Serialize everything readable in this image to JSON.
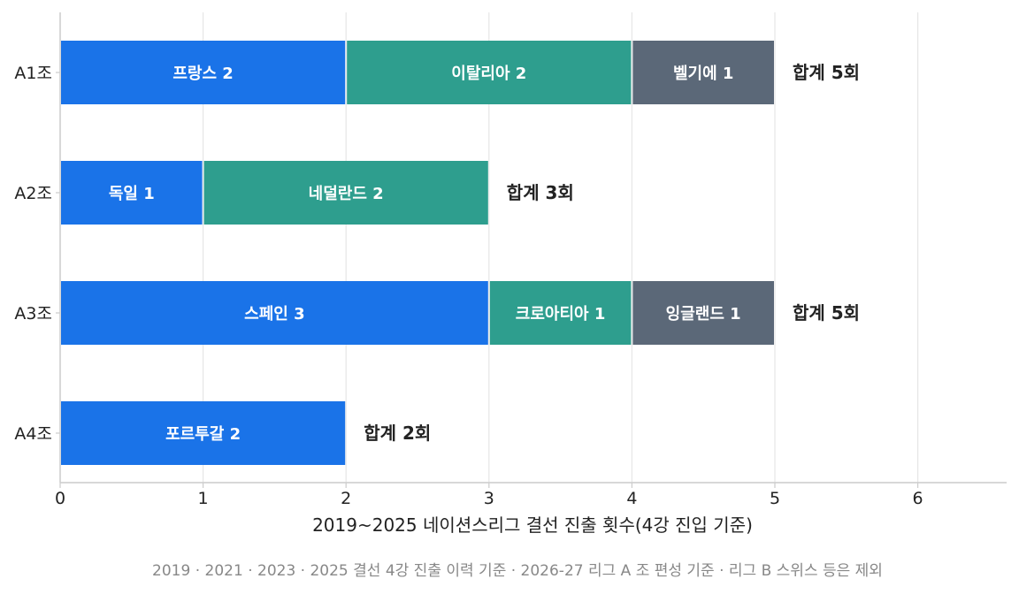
{
  "chart_data": {
    "type": "bar",
    "orientation": "horizontal",
    "stacked": true,
    "categories": [
      "A1조",
      "A2조",
      "A3조",
      "A4조"
    ],
    "segments": [
      [
        {
          "label": "프랑스 2",
          "value": 2,
          "color": "#1a73e8"
        },
        {
          "label": "이탈리아 2",
          "value": 2,
          "color": "#2e9e8e"
        },
        {
          "label": "벨기에 1",
          "value": 1,
          "color": "#5b6878"
        }
      ],
      [
        {
          "label": "독일 1",
          "value": 1,
          "color": "#1a73e8"
        },
        {
          "label": "네덜란드 2",
          "value": 2,
          "color": "#2e9e8e"
        }
      ],
      [
        {
          "label": "스페인 3",
          "value": 3,
          "color": "#1a73e8"
        },
        {
          "label": "크로아티아 1",
          "value": 1,
          "color": "#2e9e8e"
        },
        {
          "label": "잉글랜드 1",
          "value": 1,
          "color": "#5b6878"
        }
      ],
      [
        {
          "label": "포르투갈 2",
          "value": 2,
          "color": "#1a73e8"
        }
      ]
    ],
    "totals": [
      "합계 5회",
      "합계 3회",
      "합계 5회",
      "합계 2회"
    ],
    "xticks": [
      "0",
      "1",
      "2",
      "3",
      "4",
      "5",
      "6"
    ],
    "xlim": [
      0,
      6.6
    ],
    "xlabel": "2019~2025 네이션스리그 결선 진출 횟수(4강 진입 기준)",
    "grid": true,
    "footnote": "2019 · 2021 · 2023 · 2025 결선 4강 진출 이력 기준 · 2026-27 리그 A 조 편성 기준 · 리그 B 스위스 등은 제외"
  }
}
